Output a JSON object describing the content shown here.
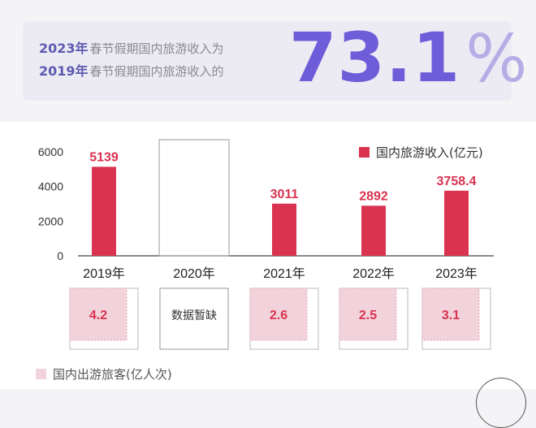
{
  "banner": {
    "line1_year": "2023年",
    "line1_text": "春节假期国内旅游收入为",
    "line2_year": "2019年",
    "line2_text": "春节假期国内旅游收入的",
    "percent_value": "73.1",
    "percent_symbol": "%"
  },
  "chart_data": {
    "type": "bar",
    "categories": [
      "2019年",
      "2020年",
      "2021年",
      "2022年",
      "2023年"
    ],
    "series": [
      {
        "name": "国内旅游收入(亿元)",
        "values": [
          5139,
          null,
          3011,
          2892,
          3758.4
        ],
        "labels": [
          "5139",
          "",
          "3011",
          "2892",
          "3758.4"
        ],
        "color": "#d9334f"
      },
      {
        "name": "国内出游旅客(亿人次)",
        "values": [
          4.2,
          null,
          2.6,
          2.5,
          3.1
        ],
        "labels": [
          "4.2",
          "",
          "2.6",
          "2.5",
          "3.1"
        ],
        "color": "#f2d3db"
      }
    ],
    "missing_label": "数据暂缺",
    "yticks": [
      "0",
      "2000",
      "4000",
      "6000"
    ],
    "ylim": [
      0,
      6000
    ],
    "legend_position": "top-right"
  }
}
